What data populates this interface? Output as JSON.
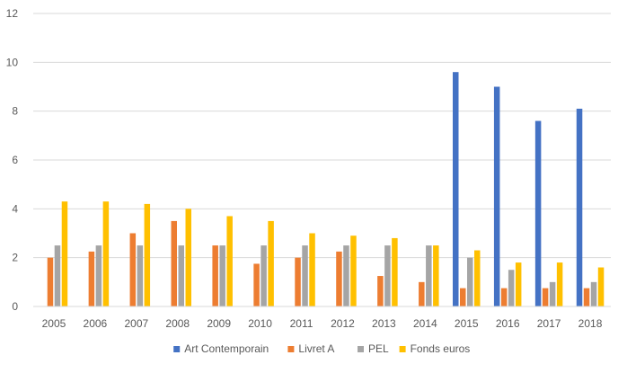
{
  "chart_data": {
    "type": "bar",
    "title": "",
    "xlabel": "",
    "ylabel": "",
    "ylim": [
      0,
      12
    ],
    "yticks": [
      "0",
      "2",
      "4",
      "6",
      "8",
      "10",
      "12"
    ],
    "grid": true,
    "legend_position": "bottom",
    "categories": [
      "2005",
      "2006",
      "2007",
      "2008",
      "2009",
      "2010",
      "2011",
      "2012",
      "2013",
      "2014",
      "2015",
      "2016",
      "2017",
      "2018"
    ],
    "series": [
      {
        "name": "Art Contemporain",
        "color": "#4472C4",
        "values": [
          null,
          null,
          null,
          null,
          null,
          null,
          null,
          null,
          null,
          null,
          9.6,
          9.0,
          7.6,
          8.1
        ]
      },
      {
        "name": "Livret A",
        "color": "#ED7D31",
        "values": [
          2.0,
          2.25,
          3.0,
          3.5,
          2.5,
          1.75,
          2.0,
          2.25,
          1.25,
          1.0,
          0.75,
          0.75,
          0.75,
          0.75
        ]
      },
      {
        "name": "PEL",
        "color": "#A5A5A5",
        "values": [
          2.5,
          2.5,
          2.5,
          2.5,
          2.5,
          2.5,
          2.5,
          2.5,
          2.5,
          2.5,
          2.0,
          1.5,
          1.0,
          1.0
        ]
      },
      {
        "name": "Fonds euros",
        "color": "#FFC000",
        "values": [
          4.3,
          4.3,
          4.2,
          4.0,
          3.7,
          3.5,
          3.0,
          2.9,
          2.8,
          2.5,
          2.3,
          1.8,
          1.8,
          1.6
        ]
      }
    ]
  }
}
